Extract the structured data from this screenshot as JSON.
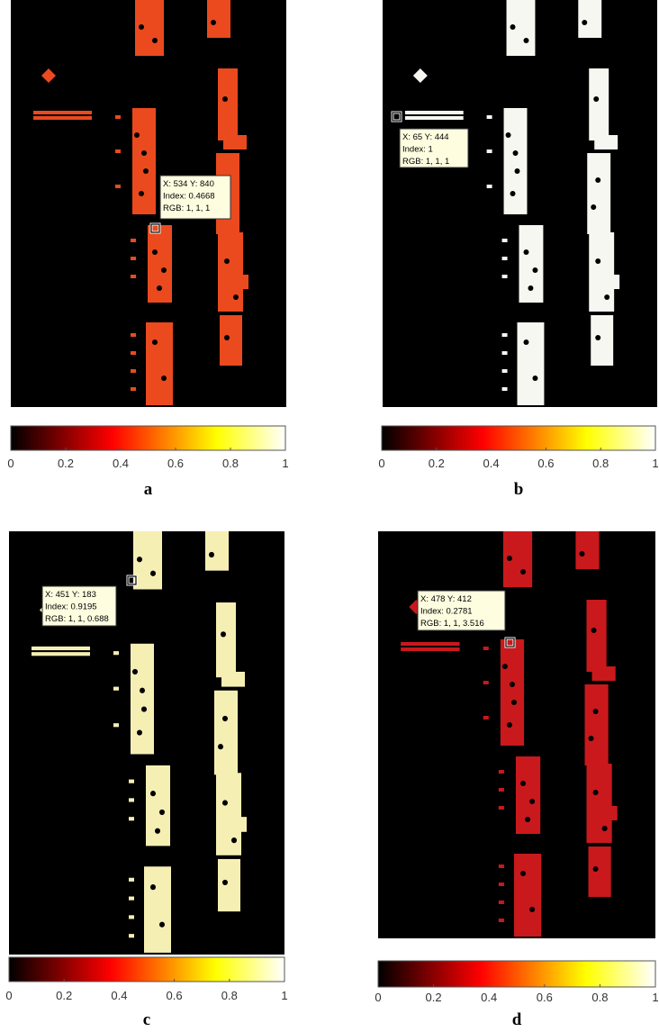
{
  "colorbar_ticks": [
    0,
    0.2,
    0.4,
    0.6,
    0.8,
    1
  ],
  "panels": [
    {
      "label": "a",
      "color": "#ea4a1e",
      "tip": [
        "X: 534 Y: 840",
        "Index: 0.4668",
        "RGB: 1, 1, 1"
      ]
    },
    {
      "label": "b",
      "color": "#f7f7f2",
      "tip": [
        "X: 65 Y: 444",
        "Index: 1",
        "RGB: 1, 1, 1"
      ]
    },
    {
      "label": "c",
      "color": "#f6efb4",
      "tip": [
        "X: 451 Y: 183",
        "Index: 0.9195",
        "RGB: 1, 1, 0.688"
      ]
    },
    {
      "label": "d",
      "color": "#c9191c",
      "tip": [
        "X: 478 Y: 412",
        "Index: 0.2781",
        "RGB: 1, 1, 3.516"
      ]
    }
  ]
}
